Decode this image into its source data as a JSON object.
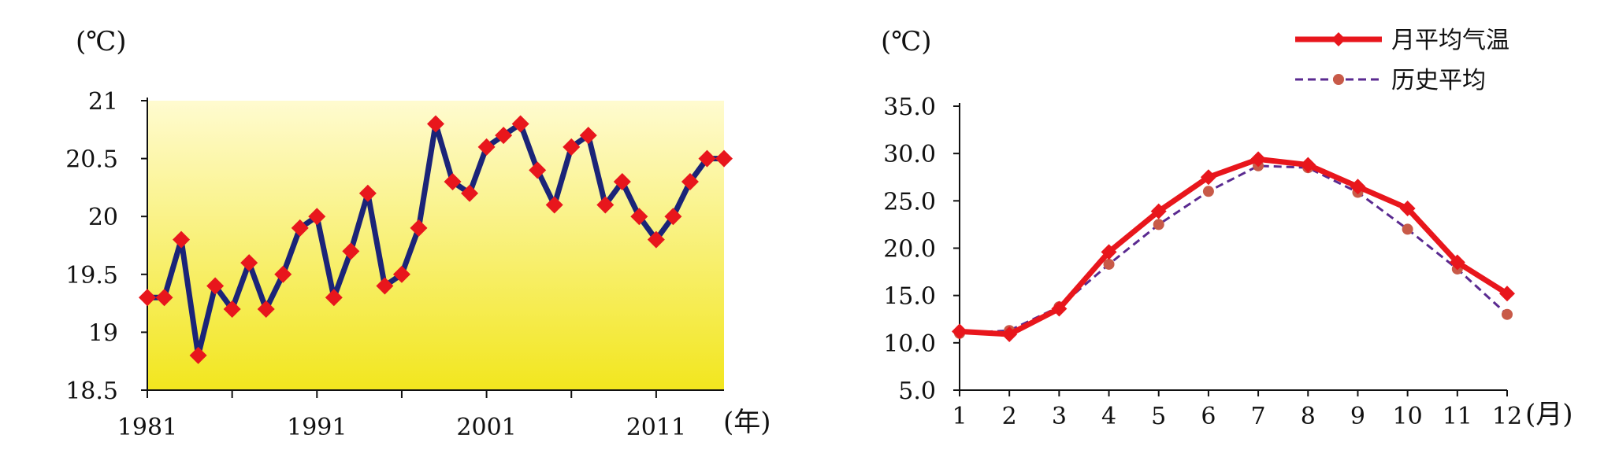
{
  "chart_data": [
    {
      "type": "line",
      "ylabel": "(℃)",
      "xlabel": "(年)",
      "ylim": [
        18.5,
        21
      ],
      "xlim": [
        1981,
        2015
      ],
      "yticks": [
        "18.5",
        "19",
        "19.5",
        "20",
        "20.5",
        "21"
      ],
      "xticks": [
        "1981",
        "1991",
        "2001",
        "2011"
      ],
      "background_gradient": [
        "#fffbd0",
        "#f2e61e"
      ],
      "series": [
        {
          "color": "#1b2478",
          "marker_color": "#e8161c",
          "x": [
            1981,
            1982,
            1983,
            1984,
            1985,
            1986,
            1987,
            1988,
            1989,
            1990,
            1991,
            1992,
            1993,
            1994,
            1995,
            1996,
            1997,
            1998,
            1999,
            2000,
            2001,
            2002,
            2003,
            2004,
            2005,
            2006,
            2007,
            2008,
            2009,
            2010,
            2011,
            2012,
            2013,
            2014,
            2015
          ],
          "values": [
            19.3,
            19.3,
            19.8,
            18.8,
            19.4,
            19.2,
            19.6,
            19.2,
            19.5,
            19.9,
            20.0,
            19.3,
            19.7,
            20.2,
            19.4,
            19.5,
            19.9,
            20.8,
            20.3,
            20.2,
            20.6,
            20.7,
            20.8,
            20.4,
            20.1,
            20.6,
            20.7,
            20.1,
            20.3,
            20.0,
            19.8,
            20.0,
            20.3,
            20.5,
            20.5
          ]
        }
      ]
    },
    {
      "type": "line",
      "ylabel": "(℃)",
      "xlabel": "(月)",
      "ylim": [
        5.0,
        35.0
      ],
      "yticks": [
        "5.0",
        "10.0",
        "15.0",
        "20.0",
        "25.0",
        "30.0",
        "35.0"
      ],
      "categories": [
        "1",
        "2",
        "3",
        "4",
        "5",
        "6",
        "7",
        "8",
        "9",
        "10",
        "11",
        "12"
      ],
      "legend_position": "top-right",
      "series": [
        {
          "name": "月平均气温",
          "color": "#e8161c",
          "style": "solid",
          "values": [
            11.2,
            10.9,
            13.6,
            19.6,
            23.9,
            27.5,
            29.4,
            28.8,
            26.5,
            24.2,
            18.5,
            15.2
          ]
        },
        {
          "name": "历史平均",
          "color": "#5a2a90",
          "marker_color": "#c85a48",
          "style": "dashed",
          "values": [
            11.0,
            11.3,
            13.8,
            18.3,
            22.5,
            26.0,
            28.7,
            28.5,
            25.9,
            22.0,
            17.8,
            13.0
          ]
        }
      ]
    }
  ]
}
